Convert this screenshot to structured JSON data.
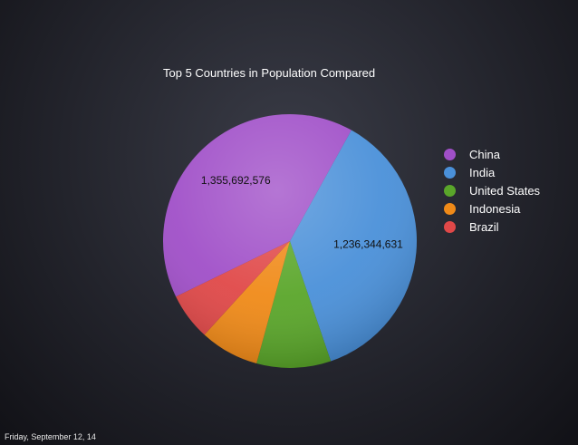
{
  "footer": {
    "date": "Friday, September 12, 14"
  },
  "chart_data": {
    "type": "pie",
    "title": "Top 5 Countries in Population Compared",
    "categories": [
      "China",
      "India",
      "United States",
      "Indonesia",
      "Brazil"
    ],
    "values": [
      1355692576,
      1236344631,
      318892103,
      253609643,
      202656788
    ],
    "data_labels": [
      "1,355,692,576",
      "1,236,344,631",
      "",
      "",
      ""
    ],
    "colors": [
      "#a04fc8",
      "#4a90d9",
      "#5aa62a",
      "#f08a18",
      "#e04848"
    ],
    "legend_position": "right"
  }
}
